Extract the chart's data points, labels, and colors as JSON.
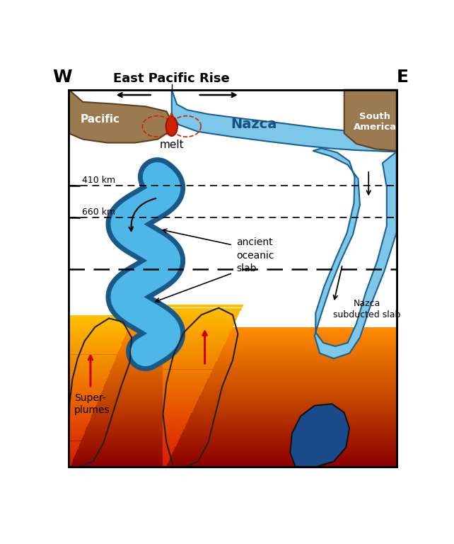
{
  "title": "East Pacific Rise",
  "label_W": "W",
  "label_E": "E",
  "label_pacific": "Pacific",
  "label_nazca_plate": "Nazca",
  "label_south_america": "South\nAmerica",
  "label_melt": "melt",
  "label_410": "410 km",
  "label_660": "660 km",
  "label_ancient": "ancient\noceanic\nslab",
  "label_nazca_sub": "Nazca\nsubducted slab",
  "label_superplumes": "Super-\nplumes",
  "color_light_blue": "#7DC8E8",
  "color_mid_blue": "#5AAAD8",
  "color_dark_blue_outline": "#1A6090",
  "color_deep_blue_blob": "#1A4A8A",
  "color_brown": "#9B7A50",
  "color_red_melt": "#CC2200",
  "color_border": "#000000"
}
